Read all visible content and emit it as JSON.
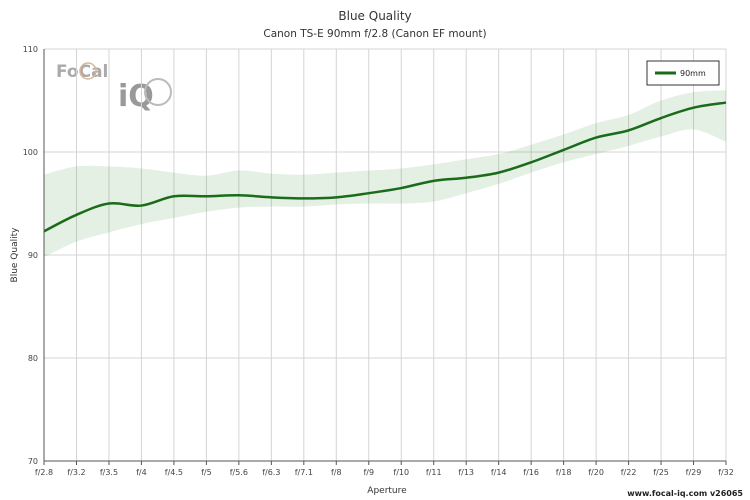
{
  "chart_data": {
    "type": "line",
    "title": "Blue Quality",
    "subtitle": "Canon TS-E 90mm f/2.8 (Canon EF mount)",
    "xlabel": "Aperture",
    "ylabel": "Blue Quality",
    "ylim": [
      70,
      110
    ],
    "yticks": [
      70,
      80,
      90,
      100,
      110
    ],
    "grid": true,
    "legend_position": "top-right",
    "categories": [
      "f/2.8",
      "f/3.2",
      "f/3.5",
      "f/4",
      "f/4.5",
      "f/5",
      "f/5.6",
      "f/6.3",
      "f/7.1",
      "f/8",
      "f/9",
      "f/10",
      "f/11",
      "f/13",
      "f/14",
      "f/16",
      "f/18",
      "f/20",
      "f/22",
      "f/25",
      "f/29",
      "f/32"
    ],
    "series": [
      {
        "name": "90mm",
        "color": "#1a6b1a",
        "values": [
          92.3,
          93.9,
          95.0,
          94.8,
          95.7,
          95.7,
          95.8,
          95.6,
          95.5,
          95.6,
          96.0,
          96.5,
          97.2,
          97.5,
          98.0,
          99.0,
          100.2,
          101.4,
          102.1,
          103.3,
          104.3,
          104.8
        ],
        "band_upper": [
          97.8,
          98.6,
          98.6,
          98.4,
          98.0,
          97.7,
          98.2,
          97.9,
          97.8,
          98.0,
          98.2,
          98.4,
          98.8,
          99.3,
          99.8,
          100.7,
          101.7,
          102.8,
          103.6,
          105.0,
          105.8,
          106.0
        ],
        "band_lower": [
          89.8,
          91.3,
          92.2,
          93.0,
          93.6,
          94.2,
          94.6,
          94.7,
          94.7,
          94.9,
          95.0,
          95.0,
          95.2,
          96.0,
          96.9,
          98.0,
          99.0,
          99.8,
          100.6,
          101.5,
          102.2,
          101.0
        ]
      }
    ]
  },
  "branding": {
    "logo_focal": "FoCal",
    "logo_iq": "iQ",
    "footer": "www.focal-iq.com  v26065"
  }
}
